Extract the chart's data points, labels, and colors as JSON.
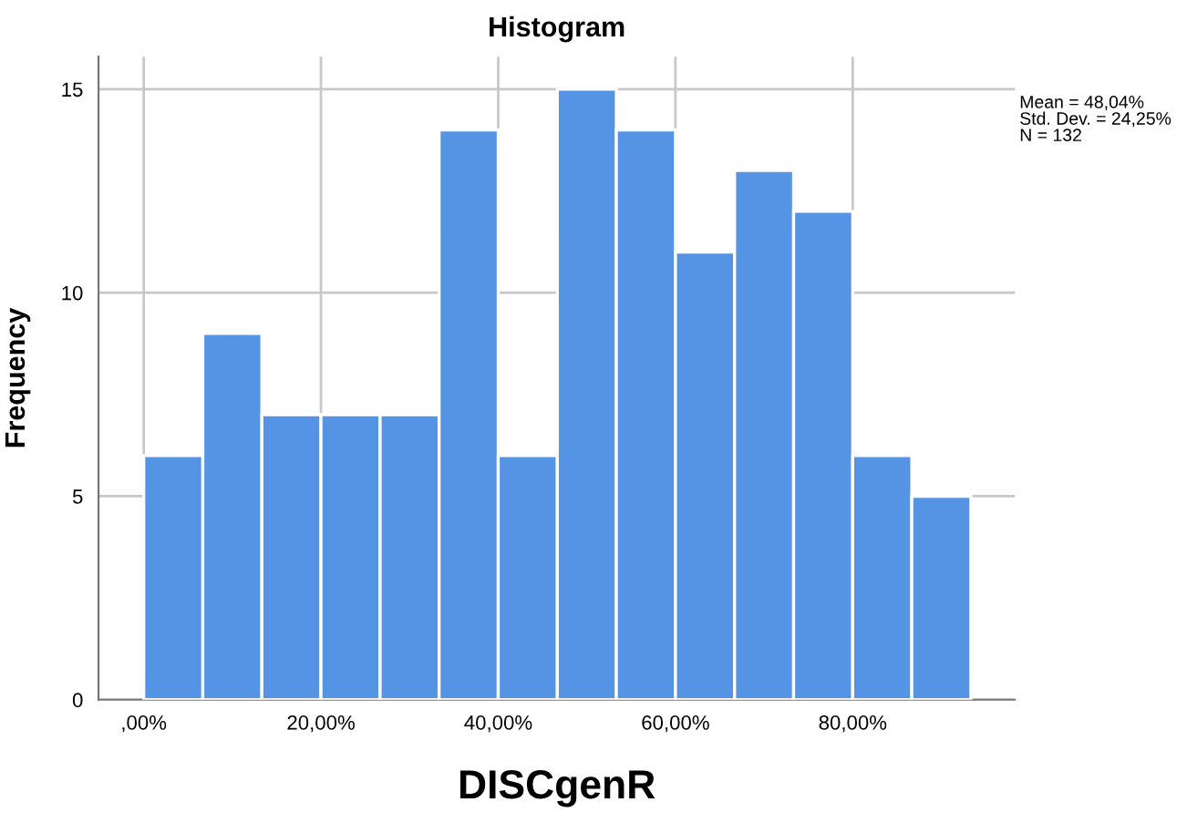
{
  "chart_data": {
    "type": "histogram",
    "title": "Histogram",
    "xlabel": "DISCgenR",
    "ylabel": "Frequency",
    "bins": [
      0,
      6.67,
      13.33,
      20,
      26.67,
      33.33,
      40,
      46.67,
      53.33,
      60,
      66.67,
      73.33,
      80,
      86.67,
      93.33
    ],
    "values": [
      6,
      9,
      7,
      7,
      7,
      14,
      6,
      15,
      14,
      11,
      13,
      12,
      6,
      5
    ],
    "color": "#5594e4",
    "xlim": [
      -5.1,
      98.3
    ],
    "ylim": [
      0,
      15.8
    ],
    "xticks": [
      {
        "value": 0,
        "label": ",00%"
      },
      {
        "value": 20,
        "label": "20,00%"
      },
      {
        "value": 40,
        "label": "40,00%"
      },
      {
        "value": 60,
        "label": "60,00%"
      },
      {
        "value": 80,
        "label": "80,00%"
      }
    ],
    "yticks": [
      0,
      5,
      10,
      15
    ],
    "grid": true,
    "annotations": [
      "Mean = 48,04%\nStd. Dev. = 24,25%\nN = 132"
    ]
  }
}
